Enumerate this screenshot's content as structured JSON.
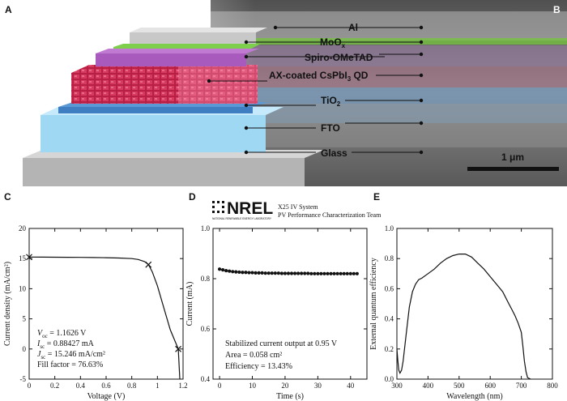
{
  "panels": {
    "A": "A",
    "B": "B",
    "C": "C",
    "D": "D",
    "E": "E"
  },
  "schematic": {
    "layers": [
      {
        "key": "al",
        "label": "Al",
        "color": "#c8c8c8"
      },
      {
        "key": "moox",
        "label": "MoOx",
        "color": "#7ed04c"
      },
      {
        "key": "spiro",
        "label": "Spiro-OMeTAD",
        "color": "#a95bbd"
      },
      {
        "key": "qd",
        "label": "AX-coated CsPbI3 QD",
        "color": "#c8284a"
      },
      {
        "key": "tio2",
        "label": "TiO2",
        "color": "#3f7ec0"
      },
      {
        "key": "fto",
        "label": "FTO",
        "color": "#9fd8f2"
      },
      {
        "key": "glass",
        "label": "Glass",
        "color": "#b4b4b4"
      }
    ],
    "scale_bar": "1 μm"
  },
  "nrel": {
    "logo": "NREL",
    "logo_sub": "NATIONAL RENEWABLE ENERGY LABORATORY",
    "line1": "X25 IV System",
    "line2": "PV Performance Characterization Team"
  },
  "chart_data": [
    {
      "panel": "C",
      "type": "line",
      "xlabel": "Voltage (V)",
      "ylabel": "Current density (mA/cm²)",
      "xlim": [
        0,
        1.2
      ],
      "ylim": [
        -5,
        20
      ],
      "xticks": [
        "0",
        "0.2",
        "0.4",
        "0.6",
        "0.8",
        "1",
        "1.2"
      ],
      "yticks": [
        "-5",
        "0",
        "5",
        "10",
        "15",
        "20"
      ],
      "series": [
        {
          "x": [
            0,
            0.1,
            0.2,
            0.3,
            0.4,
            0.5,
            0.6,
            0.7,
            0.8,
            0.85,
            0.9,
            0.93,
            0.96,
            1.0,
            1.05,
            1.1,
            1.1626,
            1.175
          ],
          "y": [
            15.25,
            15.24,
            15.23,
            15.22,
            15.2,
            15.18,
            15.15,
            15.1,
            15.0,
            14.85,
            14.5,
            14.0,
            12.8,
            10.5,
            6.8,
            3.2,
            0,
            -5
          ]
        }
      ],
      "markers": [
        {
          "x": 0,
          "y": 15.246
        },
        {
          "x": 0.93,
          "y": 14.0
        },
        {
          "x": 1.1626,
          "y": 0
        }
      ],
      "annotations": [
        {
          "var": "V",
          "sub": "oc",
          "text": " = 1.1626 V"
        },
        {
          "var": "I",
          "sub": "sc",
          "text": " = 0.88427 mA"
        },
        {
          "var": "J",
          "sub": "sc",
          "text": " = 15.246 mA/cm²"
        },
        {
          "var": "",
          "sub": "",
          "text": "Fill factor = 76.63%"
        }
      ]
    },
    {
      "panel": "D",
      "type": "scatter",
      "xlabel": "Time (s)",
      "ylabel": "Current (mA)",
      "xlim": [
        -2,
        45
      ],
      "ylim": [
        0.4,
        1.0
      ],
      "xticks": [
        "0",
        "10",
        "20",
        "30",
        "40"
      ],
      "yticks": [
        "0.4",
        "0.6",
        "0.8",
        "1.0"
      ],
      "series": [
        {
          "x": [
            0,
            1,
            2,
            3,
            4,
            5,
            6,
            7,
            8,
            9,
            10,
            11,
            12,
            13,
            14,
            15,
            16,
            17,
            18,
            19,
            20,
            21,
            22,
            23,
            24,
            25,
            26,
            27,
            28,
            29,
            30,
            31,
            32,
            33,
            34,
            35,
            36,
            37,
            38,
            39,
            40,
            41,
            42
          ],
          "y": [
            0.838,
            0.835,
            0.832,
            0.83,
            0.828,
            0.827,
            0.826,
            0.825,
            0.825,
            0.824,
            0.824,
            0.823,
            0.823,
            0.823,
            0.822,
            0.822,
            0.822,
            0.822,
            0.822,
            0.821,
            0.821,
            0.821,
            0.821,
            0.821,
            0.821,
            0.821,
            0.821,
            0.821,
            0.82,
            0.82,
            0.82,
            0.82,
            0.82,
            0.82,
            0.82,
            0.82,
            0.82,
            0.82,
            0.82,
            0.82,
            0.82,
            0.82,
            0.82
          ]
        }
      ],
      "annotations": [
        "Stabilized current output at 0.95 V",
        "Area = 0.058 cm²",
        "Efficiency = 13.43%"
      ]
    },
    {
      "panel": "E",
      "type": "line",
      "xlabel": "Wavelength (nm)",
      "ylabel": "External quantum efficiency",
      "xlim": [
        300,
        800
      ],
      "ylim": [
        0,
        1.0
      ],
      "xticks": [
        "300",
        "400",
        "500",
        "600",
        "700",
        "800"
      ],
      "yticks": [
        "0.0",
        "0.2",
        "0.4",
        "0.6",
        "0.8",
        "1.0"
      ],
      "series": [
        {
          "x": [
            300,
            303,
            306,
            310,
            315,
            320,
            330,
            340,
            350,
            360,
            370,
            380,
            400,
            420,
            440,
            460,
            480,
            500,
            520,
            540,
            560,
            580,
            600,
            620,
            640,
            660,
            670,
            680,
            690,
            700,
            705,
            710,
            715,
            720,
            730
          ],
          "y": [
            0.2,
            0.12,
            0.06,
            0.04,
            0.06,
            0.12,
            0.3,
            0.48,
            0.58,
            0.63,
            0.66,
            0.67,
            0.7,
            0.73,
            0.77,
            0.8,
            0.82,
            0.83,
            0.83,
            0.81,
            0.77,
            0.73,
            0.68,
            0.63,
            0.58,
            0.5,
            0.46,
            0.42,
            0.37,
            0.31,
            0.22,
            0.12,
            0.05,
            0.01,
            0.0
          ]
        }
      ]
    }
  ]
}
